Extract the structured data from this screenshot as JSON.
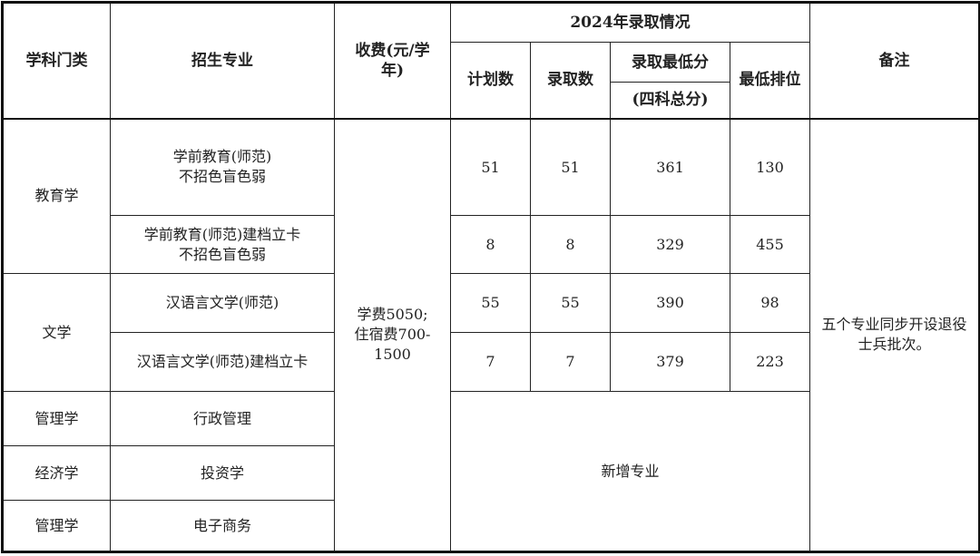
{
  "header": {
    "category": "学科门类",
    "major": "招生专业",
    "fee": "收费(元/学年)",
    "year_group": "2024年录取情况",
    "plan": "计划数",
    "admitted": "录取数",
    "min_score": "录取最低分",
    "min_score_sub": "(四科总分)",
    "min_rank": "最低排位",
    "remark": "备注"
  },
  "rows": [
    {
      "category": "教育学",
      "major": "学前教育(师范)\n不招色盲色弱",
      "plan": "51",
      "admitted": "51",
      "min_score": "361",
      "min_rank": "130"
    },
    {
      "major": "学前教育(师范)建档立卡\n不招色盲色弱",
      "plan": "8",
      "admitted": "8",
      "min_score": "329",
      "min_rank": "455"
    },
    {
      "category": "文学",
      "major": "汉语言文学(师范)",
      "plan": "55",
      "admitted": "55",
      "min_score": "390",
      "min_rank": "98"
    },
    {
      "major": "汉语言文学(师范)建档立卡",
      "plan": "7",
      "admitted": "7",
      "min_score": "379",
      "min_rank": "223"
    },
    {
      "category": "管理学",
      "major": "行政管理"
    },
    {
      "category": "经济学",
      "major": "投资学"
    },
    {
      "category": "管理学",
      "major": "电子商务"
    }
  ],
  "fee_text": "学费5050;\n住宿费700-\n1500",
  "new_major": "新增专业",
  "remark_text": "五个专业同步开设退役士兵批次。"
}
